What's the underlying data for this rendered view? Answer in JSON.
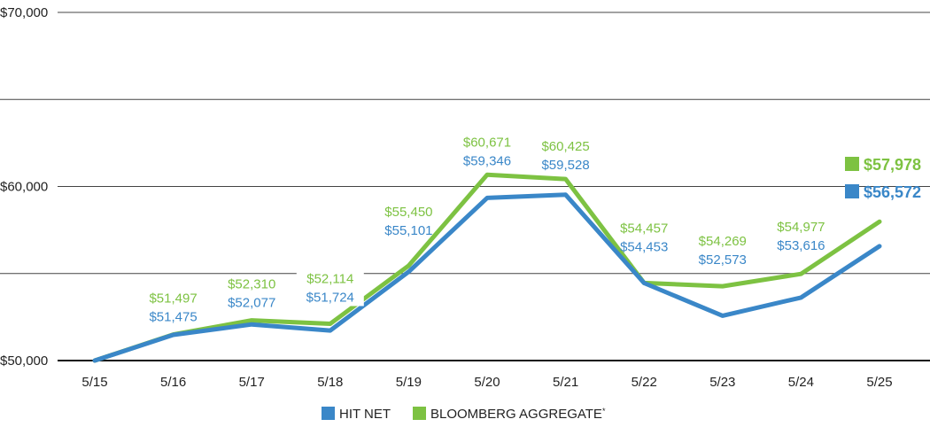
{
  "chart_data": {
    "type": "line",
    "title": "",
    "xlabel": "",
    "ylabel": "",
    "ylim": [
      50000,
      70000
    ],
    "yticks": [
      {
        "value": 70000,
        "label": "$70,000"
      },
      {
        "value": 60000,
        "label": "$60,000"
      },
      {
        "value": 50000,
        "label": "$50,000"
      }
    ],
    "minor_gridlines": [
      65000,
      55000
    ],
    "x": [
      "5/15",
      "5/16",
      "5/17",
      "5/18",
      "5/19",
      "5/20",
      "5/21",
      "5/22",
      "5/23",
      "5/24",
      "5/25"
    ],
    "series": [
      {
        "name": "BLOOMBERG AGGREGATE",
        "superscript": "*",
        "color": "#7dc242",
        "values": [
          50000,
          51497,
          52310,
          52114,
          55450,
          60671,
          60425,
          54457,
          54269,
          54977,
          57978
        ],
        "labels": [
          "",
          "$51,497",
          "$52,310",
          "$52,114",
          "$55,450",
          "$60,671",
          "$60,425",
          "$54,457",
          "$54,269",
          "$54,977",
          "$57,978"
        ]
      },
      {
        "name": "HIT NET",
        "superscript": "",
        "color": "#3a87c8",
        "values": [
          50000,
          51475,
          52077,
          51724,
          55101,
          59346,
          59528,
          54453,
          52573,
          53616,
          56572
        ],
        "labels": [
          "",
          "$51,475",
          "$52,077",
          "$51,724",
          "$55,101",
          "$59,346",
          "$59,528",
          "$54,453",
          "$52,573",
          "$53,616",
          "$56,572"
        ]
      }
    ],
    "legend_position": "bottom-center",
    "grid": true
  }
}
